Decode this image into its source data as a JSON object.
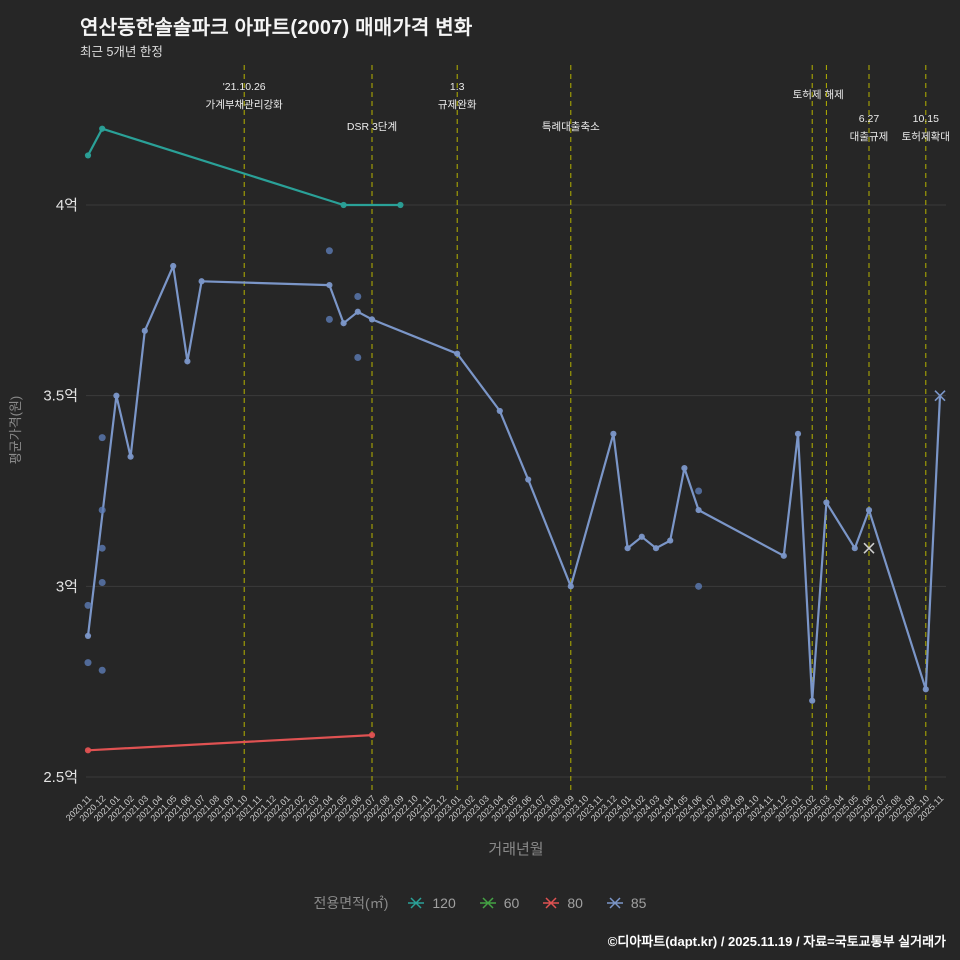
{
  "title": "연산동한솔솔파크 아파트(2007) 매매가격 변화",
  "subtitle": "최근 5개년 한정",
  "footer": "©디아파트(dapt.kr) / 2025.11.19 / 자료=국토교통부 실거래가",
  "legend": {
    "title": "전용면적(㎡)",
    "items": [
      {
        "label": "120",
        "color": "#2aa198"
      },
      {
        "label": "60",
        "color": "#44a344"
      },
      {
        "label": "80",
        "color": "#e05252"
      },
      {
        "label": "85",
        "color": "#7b96c8"
      }
    ]
  },
  "chart_data": {
    "type": "line",
    "title": "연산동한솔솔파크 아파트(2007) 매매가격 변화",
    "xlabel": "거래년월",
    "ylabel": "평균가격(원)",
    "unit": "억원",
    "ylim": [
      2.45,
      4.35
    ],
    "y_axis": {
      "ticks": [
        {
          "v": 4.0,
          "label": "4억"
        },
        {
          "v": 3.5,
          "label": "3.5억"
        },
        {
          "v": 3.0,
          "label": "3억"
        },
        {
          "v": 2.5,
          "label": "2.5억"
        }
      ]
    },
    "x_categories": [
      "2020.11",
      "2020.12",
      "2021.01",
      "2021.02",
      "2021.03",
      "2021.04",
      "2021.05",
      "2021.06",
      "2021.07",
      "2021.08",
      "2021.09",
      "2021.10",
      "2021.11",
      "2021.12",
      "2022.01",
      "2022.02",
      "2022.03",
      "2022.04",
      "2022.05",
      "2022.06",
      "2022.07",
      "2022.08",
      "2022.09",
      "2022.10",
      "2022.11",
      "2022.12",
      "2023.01",
      "2023.02",
      "2023.03",
      "2023.04",
      "2023.05",
      "2023.06",
      "2023.07",
      "2023.08",
      "2023.09",
      "2023.10",
      "2023.11",
      "2023.12",
      "2024.01",
      "2024.02",
      "2024.03",
      "2024.04",
      "2024.05",
      "2024.06",
      "2024.07",
      "2024.08",
      "2024.09",
      "2024.10",
      "2024.11",
      "2024.12",
      "2025.01",
      "2025.02",
      "2025.03",
      "2025.04",
      "2025.05",
      "2025.06",
      "2025.07",
      "2025.08",
      "2025.09",
      "2025.10",
      "2025.11"
    ],
    "series": [
      {
        "name": "120",
        "color": "#2aa198",
        "points": [
          [
            "2020.11",
            4.13
          ],
          [
            "2020.12",
            4.2
          ],
          [
            "2022.05",
            4.0
          ],
          [
            "2022.09",
            4.0
          ]
        ]
      },
      {
        "name": "60",
        "color": "#44a344",
        "points": []
      },
      {
        "name": "80",
        "color": "#e05252",
        "points": [
          [
            "2020.11",
            2.57
          ],
          [
            "2022.07",
            2.61
          ]
        ]
      },
      {
        "name": "85",
        "color": "#7b96c8",
        "skip_last_marker": true,
        "points": [
          [
            "2020.11",
            2.87
          ],
          [
            "2021.01",
            3.5
          ],
          [
            "2021.02",
            3.34
          ],
          [
            "2021.03",
            3.67
          ],
          [
            "2021.05",
            3.84
          ],
          [
            "2021.06",
            3.59
          ],
          [
            "2021.07",
            3.8
          ],
          [
            "2022.04",
            3.79
          ],
          [
            "2022.05",
            3.69
          ],
          [
            "2022.06",
            3.72
          ],
          [
            "2022.07",
            3.7
          ],
          [
            "2023.01",
            3.61
          ],
          [
            "2023.04",
            3.46
          ],
          [
            "2023.06",
            3.28
          ],
          [
            "2023.09",
            3.0
          ],
          [
            "2023.12",
            3.4
          ],
          [
            "2024.01",
            3.1
          ],
          [
            "2024.02",
            3.13
          ],
          [
            "2024.03",
            3.1
          ],
          [
            "2024.04",
            3.12
          ],
          [
            "2024.05",
            3.31
          ],
          [
            "2024.06",
            3.2
          ],
          [
            "2024.12",
            3.08
          ],
          [
            "2025.01",
            3.4
          ],
          [
            "2025.02",
            2.7
          ],
          [
            "2025.03",
            3.22
          ],
          [
            "2025.05",
            3.1
          ],
          [
            "2025.06",
            3.2
          ],
          [
            "2025.10",
            2.73
          ],
          [
            "2025.11",
            3.5
          ]
        ]
      }
    ],
    "scatter": [
      [
        "2020.11",
        2.8
      ],
      [
        "2020.11",
        2.95
      ],
      [
        "2020.12",
        2.78
      ],
      [
        "2020.12",
        3.01
      ],
      [
        "2020.12",
        3.1
      ],
      [
        "2020.12",
        3.2
      ],
      [
        "2020.12",
        3.39
      ],
      [
        "2022.04",
        3.88
      ],
      [
        "2022.04",
        3.7
      ],
      [
        "2022.06",
        3.76
      ],
      [
        "2022.06",
        3.6
      ],
      [
        "2024.06",
        3.25
      ],
      [
        "2024.06",
        3.0
      ]
    ],
    "x_markers": [
      {
        "month": "2025.06",
        "value": 3.1,
        "color": "#cfcfcf"
      },
      {
        "month": "2025.11",
        "value": 3.5,
        "color": "#7b96c8"
      }
    ],
    "events": [
      {
        "month": "2021.10",
        "lines": [
          "'21.10.26",
          "가계부채관리강화"
        ],
        "y": 90
      },
      {
        "month": "2022.07",
        "lines": [
          "DSR 3단계"
        ],
        "y": 130
      },
      {
        "month": "2023.01",
        "lines": [
          "1.3",
          "규제완화"
        ],
        "y": 90
      },
      {
        "month": "2023.09",
        "lines": [
          "특례대출축소"
        ],
        "y": 130
      },
      {
        "month": "2025.02",
        "lines": [
          "토허제 해제"
        ],
        "y": 98,
        "dx": 6
      },
      {
        "month": "2025.03",
        "lines": []
      },
      {
        "month": "2025.06",
        "lines": [
          "6.27",
          "대출규제"
        ],
        "y": 122
      },
      {
        "month": "2025.10",
        "lines": [
          "10.15",
          "토허제확대"
        ],
        "y": 122
      }
    ],
    "style": {
      "background": "#262626",
      "grid_color": "#3b3b3b",
      "event_line_color": "#b5b200",
      "scatter_color": "#5d7cb5",
      "tick_label_color": "#cfcfcf",
      "axis_title_color": "#8a8a8a",
      "event_text_color": "#ececec"
    }
  }
}
